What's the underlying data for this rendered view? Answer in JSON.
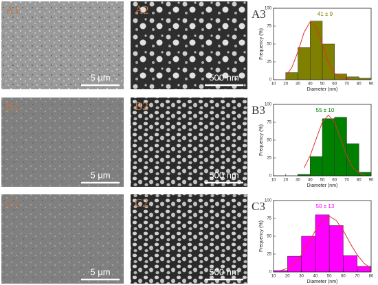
{
  "panels": [
    {
      "label": "A1",
      "scale_bar": "5 μm"
    },
    {
      "label": "A2",
      "scale_bar": "500 nm"
    },
    {
      "label": "B1",
      "scale_bar": "5 μm"
    },
    {
      "label": "B2",
      "scale_bar": "500 nm"
    },
    {
      "label": "C1",
      "scale_bar": "5 μm"
    },
    {
      "label": "C2",
      "scale_bar": "500 nm"
    }
  ],
  "chart_data": [
    {
      "type": "histogram",
      "panel_label": "A3",
      "annotation": "41 ± 9",
      "x_label": "Diameter (nm)",
      "y_label": "Frequency (%)",
      "bins": [
        20,
        30,
        40,
        50,
        60,
        70,
        80,
        90
      ],
      "values": [
        10,
        45,
        82,
        50,
        8,
        4,
        2
      ],
      "color": "#808000",
      "fit": {
        "color": "#e03030",
        "x": [
          20,
          25,
          30,
          35,
          40,
          45,
          50,
          55,
          60,
          65,
          70,
          75
        ],
        "values": [
          5,
          17,
          39,
          66,
          81,
          74,
          50,
          24,
          9,
          3,
          1,
          0
        ]
      },
      "xlim": [
        10,
        90
      ],
      "xticks": [
        10,
        20,
        30,
        40,
        50,
        60,
        70,
        80,
        90
      ],
      "ylim": [
        0,
        100
      ],
      "yticks": [
        0,
        25,
        50,
        75,
        100
      ]
    },
    {
      "type": "histogram",
      "panel_label": "B3",
      "annotation": "55 ± 10",
      "x_label": "Diameter (nm)",
      "y_label": "Frequency (%)",
      "bins": [
        30,
        40,
        50,
        60,
        70,
        80,
        90
      ],
      "values": [
        2,
        27,
        80,
        82,
        45,
        5
      ],
      "color": "#008000",
      "fit": {
        "color": "#e03030",
        "x": [
          35,
          40,
          45,
          50,
          55,
          60,
          65,
          70,
          75,
          80,
          85
        ],
        "values": [
          11,
          28,
          52,
          75,
          85,
          75,
          52,
          28,
          11,
          4,
          1
        ]
      },
      "xlim": [
        10,
        90
      ],
      "xticks": [
        10,
        20,
        30,
        40,
        50,
        60,
        70,
        80,
        90
      ],
      "ylim": [
        0,
        100
      ],
      "yticks": [
        0,
        25,
        50,
        75,
        100
      ]
    },
    {
      "type": "histogram",
      "panel_label": "C3",
      "annotation": "50 ± 13",
      "x_label": "Diameter (nm)",
      "y_label": "Frequency (%)",
      "bins": [
        10,
        20,
        30,
        40,
        50,
        60,
        70,
        80
      ],
      "values": [
        2,
        22,
        50,
        80,
        65,
        23,
        8
      ],
      "color": "#ff00ff",
      "fit": {
        "color": "#e03030",
        "x": [
          15,
          20,
          25,
          30,
          35,
          40,
          45,
          50,
          55,
          60,
          65,
          70,
          75,
          80
        ],
        "values": [
          2,
          5,
          12,
          24,
          40,
          58,
          72,
          78,
          72,
          58,
          40,
          24,
          12,
          5
        ]
      },
      "xlim": [
        10,
        80
      ],
      "xticks": [
        10,
        20,
        30,
        40,
        50,
        60,
        70,
        80
      ],
      "ylim": [
        0,
        100
      ],
      "yticks": [
        0,
        25,
        50,
        75,
        100
      ]
    }
  ]
}
